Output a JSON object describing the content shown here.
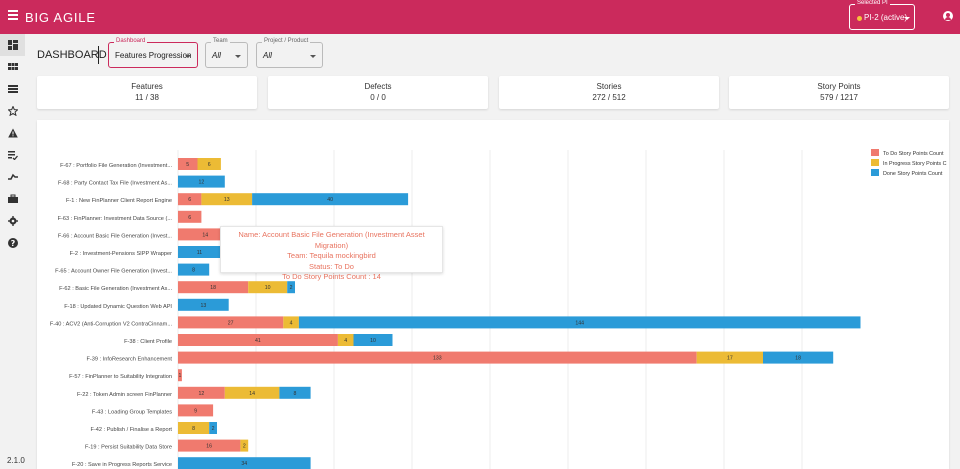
{
  "app": {
    "title": "BIG AGILE",
    "version": "2.1.0"
  },
  "pi_selector": {
    "label": "Selected PI",
    "value": "PI-2 (active)"
  },
  "dashboard": {
    "title": "DASHBOARD",
    "filters": [
      {
        "label": "Dashboard",
        "value": "Features Progression"
      },
      {
        "label": "Team",
        "value": "All"
      },
      {
        "label": "Project / Product",
        "value": "All"
      }
    ]
  },
  "cards": [
    {
      "title": "Features",
      "value": "11 / 38"
    },
    {
      "title": "Defects",
      "value": "0 / 0"
    },
    {
      "title": "Stories",
      "value": "272 / 512"
    },
    {
      "title": "Story Points",
      "value": "579 / 1217"
    }
  ],
  "colors": {
    "todo": "#f07a6e",
    "inprogress": "#ecbb35",
    "done": "#2b9bd8",
    "accent": "#cb2a5c"
  },
  "sidebar": {
    "items": [
      {
        "icon": "dashboard-icon"
      },
      {
        "icon": "grid-icon"
      },
      {
        "icon": "list-icon"
      },
      {
        "icon": "star-icon"
      },
      {
        "icon": "warning-icon"
      },
      {
        "icon": "checklist-icon"
      },
      {
        "icon": "timeline-icon"
      },
      {
        "icon": "briefcase-icon"
      },
      {
        "icon": "gear-icon"
      },
      {
        "icon": "help-icon"
      }
    ]
  },
  "tooltip": {
    "name": "Name: Account Basic File Generation (Investment Asset Migration)",
    "team": "Team: Tequila mockingbird",
    "status": "Status: To Do",
    "count": "To Do Story Points Count : 14"
  },
  "chart_data": {
    "type": "bar",
    "orientation": "horizontal",
    "stacked": true,
    "legend_position": "top-right",
    "grid": true,
    "xlim": [
      0,
      175
    ],
    "categories": [
      "F-67 : Portfolio File Generation (Investment...",
      "F-68 : Party Contact Tax File (Investment As...",
      "F-1 : New FinPlanner Client Report Engine",
      "F-63 : FinPlanner: Investment Data Source (...",
      "F-66 : Account Basic File Generation (Invest...",
      "F-2 : Investment-Pensions SIPP Wrapper",
      "F-65 : Account Owner File Generation (Invest...",
      "F-62 : Basic File Generation (Investment As...",
      "F-18 : Updated Dynamic Question Web API",
      "F-40 : ACV2 (Anti-Corruption V2 ContraCinnam...",
      "F-38 : Client Profile",
      "F-39 : InfoResearch Enhancement",
      "F-57 : FinPlanner to Suitability Integration",
      "F-22 : Token Admin screen FinPlanner",
      "F-43 : Loading Group Templates",
      "F-42 : Publish / Finalise a Report",
      "F-19 : Persist Suitability Data Store",
      "F-20 : Save in Progress Reports Service"
    ],
    "series": [
      {
        "name": "To Do Story Points Count",
        "values": [
          5,
          0,
          6,
          6,
          14,
          0,
          0,
          18,
          0,
          27,
          41,
          133,
          1,
          12,
          9,
          0,
          16,
          0
        ]
      },
      {
        "name": "In Progress Story Points C",
        "values": [
          6,
          0,
          13,
          0,
          0,
          0,
          0,
          10,
          0,
          4,
          4,
          17,
          0,
          14,
          0,
          8,
          2,
          0
        ]
      },
      {
        "name": "Done Story Points Count",
        "values": [
          0,
          12,
          40,
          0,
          0,
          11,
          8,
          2,
          13,
          144,
          10,
          18,
          0,
          8,
          0,
          2,
          0,
          34
        ]
      }
    ]
  }
}
